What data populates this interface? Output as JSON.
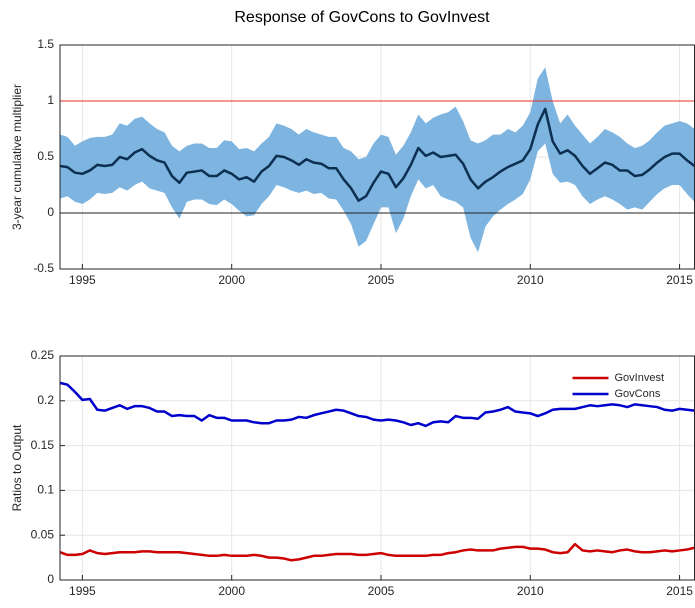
{
  "chart_data": [
    {
      "type": "band-line",
      "title": "Response of GovCons to GovInvest",
      "ylabel": "3-year cumulative multiplier",
      "x": [
        1994.25,
        1994.5,
        1994.75,
        1995,
        1995.25,
        1995.5,
        1995.75,
        1996,
        1996.25,
        1996.5,
        1996.75,
        1997,
        1997.25,
        1997.5,
        1997.75,
        1998,
        1998.25,
        1998.5,
        1998.75,
        1999,
        1999.25,
        1999.5,
        1999.75,
        2000,
        2000.25,
        2000.5,
        2000.75,
        2001,
        2001.25,
        2001.5,
        2001.75,
        2002,
        2002.25,
        2002.5,
        2002.75,
        2003,
        2003.25,
        2003.5,
        2003.75,
        2004,
        2004.25,
        2004.5,
        2004.75,
        2005,
        2005.25,
        2005.5,
        2005.75,
        2006,
        2006.25,
        2006.5,
        2006.75,
        2007,
        2007.25,
        2007.5,
        2007.75,
        2008,
        2008.25,
        2008.5,
        2008.75,
        2009,
        2009.25,
        2009.5,
        2009.75,
        2010,
        2010.25,
        2010.5,
        2010.75,
        2011,
        2011.25,
        2011.5,
        2011.75,
        2012,
        2012.25,
        2012.5,
        2012.75,
        2013,
        2013.25,
        2013.5,
        2013.75,
        2014,
        2014.25,
        2014.5,
        2014.75,
        2015,
        2015.25,
        2015.5
      ],
      "values": [
        0.42,
        0.41,
        0.36,
        0.35,
        0.38,
        0.43,
        0.42,
        0.43,
        0.5,
        0.48,
        0.54,
        0.57,
        0.51,
        0.47,
        0.45,
        0.33,
        0.27,
        0.36,
        0.37,
        0.38,
        0.33,
        0.33,
        0.38,
        0.35,
        0.3,
        0.32,
        0.28,
        0.37,
        0.42,
        0.51,
        0.5,
        0.47,
        0.43,
        0.48,
        0.45,
        0.44,
        0.4,
        0.4,
        0.3,
        0.22,
        0.11,
        0.15,
        0.27,
        0.37,
        0.35,
        0.23,
        0.31,
        0.43,
        0.58,
        0.51,
        0.54,
        0.5,
        0.51,
        0.52,
        0.44,
        0.3,
        0.22,
        0.28,
        0.32,
        0.37,
        0.41,
        0.44,
        0.47,
        0.57,
        0.79,
        0.93,
        0.64,
        0.53,
        0.56,
        0.51,
        0.42,
        0.35,
        0.4,
        0.45,
        0.43,
        0.38,
        0.38,
        0.33,
        0.34,
        0.39,
        0.45,
        0.5,
        0.53,
        0.53,
        0.47,
        0.42
      ],
      "upper": [
        0.7,
        0.68,
        0.6,
        0.64,
        0.67,
        0.68,
        0.68,
        0.7,
        0.8,
        0.78,
        0.84,
        0.86,
        0.8,
        0.75,
        0.72,
        0.6,
        0.55,
        0.6,
        0.62,
        0.62,
        0.58,
        0.58,
        0.65,
        0.64,
        0.57,
        0.58,
        0.55,
        0.62,
        0.68,
        0.8,
        0.78,
        0.75,
        0.7,
        0.75,
        0.72,
        0.7,
        0.68,
        0.68,
        0.58,
        0.55,
        0.48,
        0.5,
        0.62,
        0.7,
        0.68,
        0.52,
        0.6,
        0.72,
        0.88,
        0.8,
        0.85,
        0.88,
        0.9,
        0.95,
        0.82,
        0.65,
        0.62,
        0.65,
        0.7,
        0.7,
        0.75,
        0.72,
        0.78,
        0.9,
        1.2,
        1.3,
        1.0,
        0.8,
        0.88,
        0.78,
        0.7,
        0.62,
        0.68,
        0.75,
        0.72,
        0.68,
        0.62,
        0.58,
        0.6,
        0.65,
        0.72,
        0.78,
        0.8,
        0.82,
        0.8,
        0.75
      ],
      "lower": [
        0.13,
        0.15,
        0.1,
        0.08,
        0.12,
        0.18,
        0.17,
        0.18,
        0.23,
        0.2,
        0.25,
        0.28,
        0.22,
        0.2,
        0.18,
        0.05,
        -0.05,
        0.1,
        0.12,
        0.12,
        0.08,
        0.07,
        0.12,
        0.08,
        0.02,
        -0.03,
        -0.02,
        0.08,
        0.15,
        0.25,
        0.23,
        0.2,
        0.18,
        0.2,
        0.17,
        0.18,
        0.13,
        0.12,
        0.02,
        -0.1,
        -0.3,
        -0.25,
        -0.1,
        0.05,
        0.05,
        -0.18,
        -0.05,
        0.15,
        0.3,
        0.22,
        0.25,
        0.15,
        0.12,
        0.1,
        0.05,
        -0.22,
        -0.35,
        -0.12,
        -0.03,
        0.03,
        0.08,
        0.12,
        0.17,
        0.3,
        0.55,
        0.62,
        0.35,
        0.27,
        0.28,
        0.25,
        0.15,
        0.08,
        0.12,
        0.15,
        0.12,
        0.08,
        0.03,
        0.05,
        0.03,
        0.1,
        0.17,
        0.22,
        0.25,
        0.25,
        0.17,
        0.1
      ],
      "color": "#0c2f52",
      "band_color": "#7db4e0",
      "reference_lines": [
        {
          "value": 1,
          "color": "#e8302a"
        },
        {
          "value": 0,
          "color": "#222222"
        }
      ],
      "xlim": [
        1994.25,
        2015.5
      ],
      "xticks": [
        1995,
        2000,
        2005,
        2010,
        2015
      ],
      "ylim": [
        -0.5,
        1.5
      ],
      "yticks": [
        -0.5,
        0,
        0.5,
        1,
        1.5
      ],
      "grid": true
    },
    {
      "type": "line",
      "ylabel": "Ratios to Output",
      "legend": "northeast",
      "x": [
        1994.25,
        1994.5,
        1994.75,
        1995,
        1995.25,
        1995.5,
        1995.75,
        1996,
        1996.25,
        1996.5,
        1996.75,
        1997,
        1997.25,
        1997.5,
        1997.75,
        1998,
        1998.25,
        1998.5,
        1998.75,
        1999,
        1999.25,
        1999.5,
        1999.75,
        2000,
        2000.25,
        2000.5,
        2000.75,
        2001,
        2001.25,
        2001.5,
        2001.75,
        2002,
        2002.25,
        2002.5,
        2002.75,
        2003,
        2003.25,
        2003.5,
        2003.75,
        2004,
        2004.25,
        2004.5,
        2004.75,
        2005,
        2005.25,
        2005.5,
        2005.75,
        2006,
        2006.25,
        2006.5,
        2006.75,
        2007,
        2007.25,
        2007.5,
        2007.75,
        2008,
        2008.25,
        2008.5,
        2008.75,
        2009,
        2009.25,
        2009.5,
        2009.75,
        2010,
        2010.25,
        2010.5,
        2010.75,
        2011,
        2011.25,
        2011.5,
        2011.75,
        2012,
        2012.25,
        2012.5,
        2012.75,
        2013,
        2013.25,
        2013.5,
        2013.75,
        2014,
        2014.25,
        2014.5,
        2014.75,
        2015,
        2015.25,
        2015.5
      ],
      "series": [
        {
          "name": "GovInvest",
          "color": "#cc0000",
          "values": [
            0.031,
            0.028,
            0.028,
            0.029,
            0.033,
            0.03,
            0.029,
            0.03,
            0.031,
            0.031,
            0.031,
            0.032,
            0.032,
            0.031,
            0.031,
            0.031,
            0.031,
            0.03,
            0.029,
            0.028,
            0.027,
            0.027,
            0.028,
            0.027,
            0.027,
            0.027,
            0.028,
            0.027,
            0.025,
            0.025,
            0.024,
            0.022,
            0.023,
            0.025,
            0.027,
            0.027,
            0.028,
            0.029,
            0.029,
            0.029,
            0.028,
            0.028,
            0.029,
            0.03,
            0.028,
            0.027,
            0.027,
            0.027,
            0.027,
            0.027,
            0.028,
            0.028,
            0.03,
            0.031,
            0.033,
            0.034,
            0.033,
            0.033,
            0.033,
            0.035,
            0.036,
            0.037,
            0.037,
            0.035,
            0.035,
            0.034,
            0.031,
            0.03,
            0.031,
            0.04,
            0.033,
            0.032,
            0.033,
            0.032,
            0.031,
            0.033,
            0.034,
            0.032,
            0.031,
            0.031,
            0.032,
            0.033,
            0.032,
            0.033,
            0.034,
            0.036
          ]
        },
        {
          "name": "GovCons",
          "color": "#0000cc",
          "values": [
            0.22,
            0.218,
            0.21,
            0.201,
            0.202,
            0.19,
            0.189,
            0.192,
            0.195,
            0.191,
            0.194,
            0.194,
            0.192,
            0.188,
            0.188,
            0.183,
            0.184,
            0.183,
            0.183,
            0.178,
            0.184,
            0.181,
            0.181,
            0.178,
            0.178,
            0.178,
            0.176,
            0.175,
            0.175,
            0.178,
            0.178,
            0.179,
            0.182,
            0.181,
            0.184,
            0.186,
            0.188,
            0.19,
            0.189,
            0.186,
            0.183,
            0.182,
            0.179,
            0.178,
            0.179,
            0.178,
            0.176,
            0.173,
            0.175,
            0.172,
            0.176,
            0.177,
            0.176,
            0.183,
            0.181,
            0.181,
            0.18,
            0.187,
            0.188,
            0.19,
            0.193,
            0.188,
            0.187,
            0.186,
            0.183,
            0.186,
            0.19,
            0.191,
            0.191,
            0.191,
            0.193,
            0.195,
            0.194,
            0.195,
            0.196,
            0.195,
            0.193,
            0.196,
            0.195,
            0.194,
            0.193,
            0.19,
            0.189,
            0.191,
            0.19,
            0.189
          ]
        }
      ],
      "xlim": [
        1994.25,
        2015.5
      ],
      "xticks": [
        1995,
        2000,
        2005,
        2010,
        2015
      ],
      "ylim": [
        0,
        0.25
      ],
      "yticks": [
        0,
        0.05,
        0.1,
        0.15,
        0.2,
        0.25
      ],
      "grid": true
    }
  ]
}
